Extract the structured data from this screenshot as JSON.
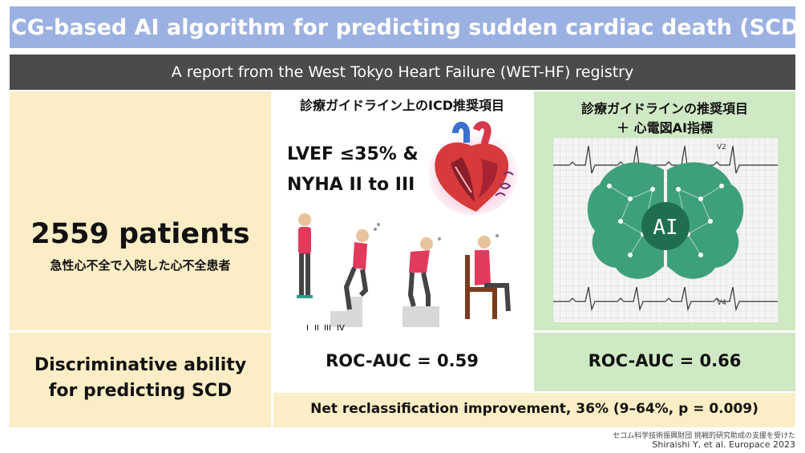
{
  "title": "ECG-based AI algorithm for predicting sudden cardiac death (SCD)",
  "subtitle": "A report from the West Tokyo Heart Failure (WET-HF) registry",
  "left": {
    "patients_count": "2559 patients",
    "patients_desc": "急性心不全で入院した心不全患者",
    "discriminative_line1": "Discriminative ability",
    "discriminative_line2": "for predicting SCD"
  },
  "middle": {
    "header": "診療ガイドライン上のICD推奨項目",
    "criteria_line1": "LVEF ≤35% &",
    "criteria_line2": "NYHA II to III",
    "nyha_classes": [
      "I",
      "II",
      "III",
      "IV"
    ],
    "roc_auc": "ROC-AUC = 0.59"
  },
  "right": {
    "header_line1": "診療ガイドラインの推奨項目",
    "header_line2": "＋ 心電図AI指標",
    "ai_label": "AI",
    "lead_labels": [
      "V2",
      "V4"
    ],
    "roc_auc": "ROC-AUC = 0.66"
  },
  "nri": "Net reclassification improvement, 36% (9–64%, p = 0.009)",
  "funding_note": "セコム科学技術振興財団 挑戦的研究助成の支援を受けた",
  "citation": "Shiraishi Y, et al. Europace 2023",
  "colors": {
    "title_bg": "#9bb1e1",
    "subtitle_bg": "#4b4b4b",
    "left_bg": "#fbeec6",
    "right_bg": "#cfe9c4",
    "ai_brain": "#3ea07a",
    "ai_circle": "#1f6f4e",
    "shirt": "#e23a5c"
  },
  "icons": [
    "heart-illustration",
    "person-figure",
    "brain-ai-icon",
    "ecg-trace"
  ]
}
